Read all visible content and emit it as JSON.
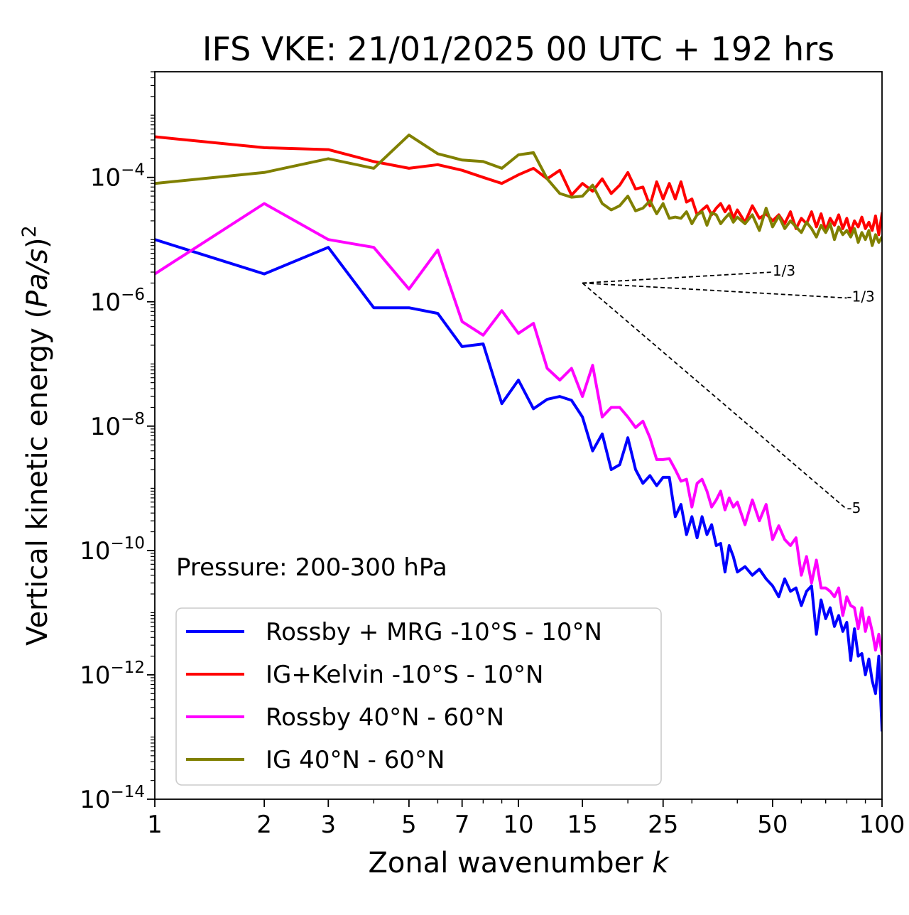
{
  "chart_data": {
    "type": "line",
    "title": "IFS VKE: 21/01/2025 00 UTC + 192 hrs",
    "xlabel": "Zonal wavenumber k",
    "ylabel": "Vertical kinetic energy (Pa/s)2",
    "xscale": "log",
    "yscale": "log",
    "xlim": [
      1,
      100
    ],
    "ylim": [
      1e-14,
      0.005
    ],
    "x_ticks": [
      1,
      2,
      3,
      5,
      7,
      10,
      15,
      25,
      50,
      100
    ],
    "y_ticks": [
      {
        "value": 1e-14,
        "base": "10",
        "exp": "−14"
      },
      {
        "value": 1e-12,
        "base": "10",
        "exp": "−12"
      },
      {
        "value": 1e-10,
        "base": "10",
        "exp": "−10"
      },
      {
        "value": 1e-08,
        "base": "10",
        "exp": "−8"
      },
      {
        "value": 1e-06,
        "base": "10",
        "exp": "−6"
      },
      {
        "value": 0.0001,
        "base": "10",
        "exp": "−4"
      }
    ],
    "annotation": "Pressure: 200-300 hPa",
    "legend_position": "lower-left",
    "grid": false,
    "series": [
      {
        "name": "Rossby + MRG -10°S - 10°N",
        "color": "#0000ff",
        "x": [
          1,
          2,
          3,
          4,
          5,
          6,
          7,
          8,
          9,
          10,
          11,
          12,
          13,
          14,
          15,
          16,
          17,
          18,
          19,
          20,
          21,
          22,
          23,
          24,
          25,
          26,
          27,
          28,
          29,
          30,
          31,
          32,
          33,
          34,
          35,
          36,
          37,
          38,
          39,
          40,
          42,
          44,
          46,
          48,
          50,
          52,
          54,
          56,
          58,
          60,
          62,
          64,
          66,
          68,
          70,
          72,
          74,
          76,
          78,
          80,
          82,
          84,
          86,
          88,
          90,
          92,
          94,
          96,
          98,
          100
        ],
        "y": [
          1e-05,
          2.8e-06,
          7.5e-06,
          8e-07,
          8e-07,
          6.5e-07,
          1.9e-07,
          2.1e-07,
          2.3e-08,
          5.5e-08,
          1.9e-08,
          2.7e-08,
          3e-08,
          2.6e-08,
          1.4e-08,
          4e-09,
          7.5e-09,
          2e-09,
          2.4e-09,
          6.5e-09,
          2e-09,
          1.2e-09,
          1.6e-09,
          1.1e-09,
          1.5e-09,
          1.5e-09,
          3.5e-10,
          5.5e-10,
          1.8e-10,
          3.5e-10,
          1.6e-10,
          3.5e-10,
          1.8e-10,
          2.6e-10,
          1.2e-10,
          1.3e-10,
          4.5e-11,
          1.2e-10,
          8e-11,
          4.5e-11,
          5.5e-11,
          4e-11,
          5e-11,
          3.5e-11,
          2.7e-11,
          1.8e-11,
          3.5e-11,
          2.2e-11,
          2.5e-11,
          1.3e-11,
          2.2e-11,
          2.7e-11,
          4.5e-12,
          1.6e-11,
          8e-12,
          1.2e-11,
          6e-12,
          9e-12,
          5e-12,
          7e-12,
          1.7e-12,
          5.5e-12,
          2e-12,
          2.2e-12,
          1e-12,
          1.8e-12,
          8e-13,
          5e-13,
          2e-12,
          1.3e-13
        ]
      },
      {
        "name": "IG+Kelvin -10°S - 10°N",
        "color": "#ff0000",
        "x": [
          1,
          2,
          3,
          4,
          5,
          6,
          7,
          8,
          9,
          10,
          11,
          12,
          13,
          14,
          15,
          16,
          17,
          18,
          19,
          20,
          21,
          22,
          23,
          24,
          25,
          26,
          27,
          28,
          29,
          30,
          31,
          32,
          33,
          34,
          35,
          36,
          37,
          38,
          39,
          40,
          42,
          44,
          46,
          48,
          50,
          52,
          54,
          56,
          58,
          60,
          62,
          64,
          66,
          68,
          70,
          72,
          74,
          76,
          78,
          80,
          82,
          84,
          86,
          88,
          90,
          92,
          94,
          96,
          98,
          100
        ],
        "y": [
          0.00045,
          0.0003,
          0.00028,
          0.00018,
          0.00014,
          0.00016,
          0.00013,
          0.0001,
          8e-05,
          0.00011,
          0.00014,
          9.5e-05,
          0.00013,
          5.2e-05,
          8e-05,
          6e-05,
          9.5e-05,
          5.5e-05,
          7.5e-05,
          0.00012,
          6.5e-05,
          7e-05,
          3.5e-05,
          8.5e-05,
          4.5e-05,
          8e-05,
          4.5e-05,
          8.5e-05,
          4e-05,
          4.5e-05,
          2.5e-05,
          3e-05,
          3.5e-05,
          2.5e-05,
          3.2e-05,
          3.8e-05,
          2.8e-05,
          3.5e-05,
          2.2e-05,
          3e-05,
          1.9e-05,
          3.5e-05,
          2.2e-05,
          2.6e-05,
          2e-05,
          2.5e-05,
          1.8e-05,
          2.8e-05,
          1.5e-05,
          2.2e-05,
          1.8e-05,
          2.8e-05,
          1.6e-05,
          2.6e-05,
          1.4e-05,
          2.2e-05,
          1.7e-05,
          2.5e-05,
          1.5e-05,
          2.2e-05,
          1.3e-05,
          2e-05,
          1.6e-05,
          2.3e-05,
          1.5e-05,
          1.9e-05,
          1.4e-05,
          2.4e-05,
          1.2e-05,
          2.6e-05
        ]
      },
      {
        "name": "Rossby 40°N - 60°N",
        "color": "#ff00ff",
        "x": [
          1,
          2,
          3,
          4,
          5,
          6,
          7,
          8,
          9,
          10,
          11,
          12,
          13,
          14,
          15,
          16,
          17,
          18,
          19,
          20,
          21,
          22,
          23,
          24,
          25,
          26,
          27,
          28,
          29,
          30,
          31,
          32,
          33,
          34,
          35,
          36,
          37,
          38,
          39,
          40,
          42,
          44,
          46,
          48,
          50,
          52,
          54,
          56,
          58,
          60,
          62,
          64,
          66,
          68,
          70,
          72,
          74,
          76,
          78,
          80,
          82,
          84,
          86,
          88,
          90,
          92,
          94,
          96,
          98,
          100
        ],
        "y": [
          2.8e-06,
          3.8e-05,
          1e-05,
          7.5e-06,
          1.6e-06,
          6.8e-06,
          4.8e-07,
          2.9e-07,
          7.2e-07,
          3.1e-07,
          4.5e-07,
          8.5e-08,
          5.5e-08,
          8.5e-08,
          3e-08,
          9.5e-08,
          1.4e-08,
          2e-08,
          2e-08,
          1.4e-08,
          9.5e-09,
          1.2e-08,
          6.5e-09,
          2.9e-09,
          2.9e-09,
          3e-09,
          2e-09,
          1.3e-09,
          1.4e-09,
          5e-10,
          1.2e-09,
          1.4e-09,
          9e-10,
          5e-10,
          6.5e-10,
          9e-10,
          4.5e-10,
          7e-10,
          5e-10,
          6e-10,
          2.6e-10,
          6.5e-10,
          3e-10,
          5.5e-10,
          1.5e-10,
          2.5e-10,
          1.5e-10,
          1.2e-10,
          1.6e-10,
          4e-11,
          8e-11,
          3e-11,
          7e-11,
          2.5e-11,
          2.5e-11,
          2.2e-11,
          1.8e-11,
          2.5e-11,
          9e-12,
          1.8e-11,
          1.3e-11,
          1.2e-11,
          5.5e-12,
          1.2e-11,
          5e-12,
          8.5e-12,
          5e-12,
          2.5e-12,
          4.5e-12,
          2.2e-12
        ]
      },
      {
        "name": "IG 40°N - 60°N",
        "color": "#808000",
        "x": [
          1,
          2,
          3,
          4,
          5,
          6,
          7,
          8,
          9,
          10,
          11,
          12,
          13,
          14,
          15,
          16,
          17,
          18,
          19,
          20,
          21,
          22,
          23,
          24,
          25,
          26,
          27,
          28,
          29,
          30,
          31,
          32,
          33,
          34,
          35,
          36,
          37,
          38,
          39,
          40,
          42,
          44,
          46,
          48,
          50,
          52,
          54,
          56,
          58,
          60,
          62,
          64,
          66,
          68,
          70,
          72,
          74,
          76,
          78,
          80,
          82,
          84,
          86,
          88,
          90,
          92,
          94,
          96,
          98,
          100
        ],
        "y": [
          8e-05,
          0.00012,
          0.0002,
          0.00014,
          0.00048,
          0.00024,
          0.00019,
          0.00018,
          0.00014,
          0.00023,
          0.00025,
          9.5e-05,
          5.5e-05,
          4.8e-05,
          5e-05,
          7.5e-05,
          3.8e-05,
          3e-05,
          3.5e-05,
          5e-05,
          2.9e-05,
          3.2e-05,
          4.2e-05,
          2.6e-05,
          3.8e-05,
          2.2e-05,
          2.3e-05,
          2.2e-05,
          2.8e-05,
          1.8e-05,
          2.5e-05,
          2.8e-05,
          1.7e-05,
          2.7e-05,
          2.5e-05,
          1.8e-05,
          2.2e-05,
          2.6e-05,
          1.9e-05,
          2.3e-05,
          1.8e-05,
          2.5e-05,
          1.4e-05,
          3.2e-05,
          1.6e-05,
          2.4e-05,
          1.5e-05,
          2e-05,
          1.6e-05,
          1.3e-05,
          1.9e-05,
          1.5e-05,
          1.1e-05,
          1.7e-05,
          1.3e-05,
          1.8e-05,
          1e-05,
          1.6e-05,
          1.2e-05,
          1.4e-05,
          1.1e-05,
          1.5e-05,
          9e-06,
          1.3e-05,
          1e-05,
          1.4e-05,
          8e-06,
          1.2e-05,
          9e-06,
          1.1e-05
        ]
      }
    ],
    "reference_lines": [
      {
        "label": "1/3",
        "x": [
          15,
          50
        ],
        "y": [
          2e-06,
          3e-06
        ]
      },
      {
        "label": "-1/3",
        "x": [
          15,
          80
        ],
        "y": [
          2e-06,
          1.15e-06
        ]
      },
      {
        "label": "-5",
        "x": [
          15,
          80
        ],
        "y": [
          2e-06,
          4.6e-10
        ]
      }
    ]
  }
}
